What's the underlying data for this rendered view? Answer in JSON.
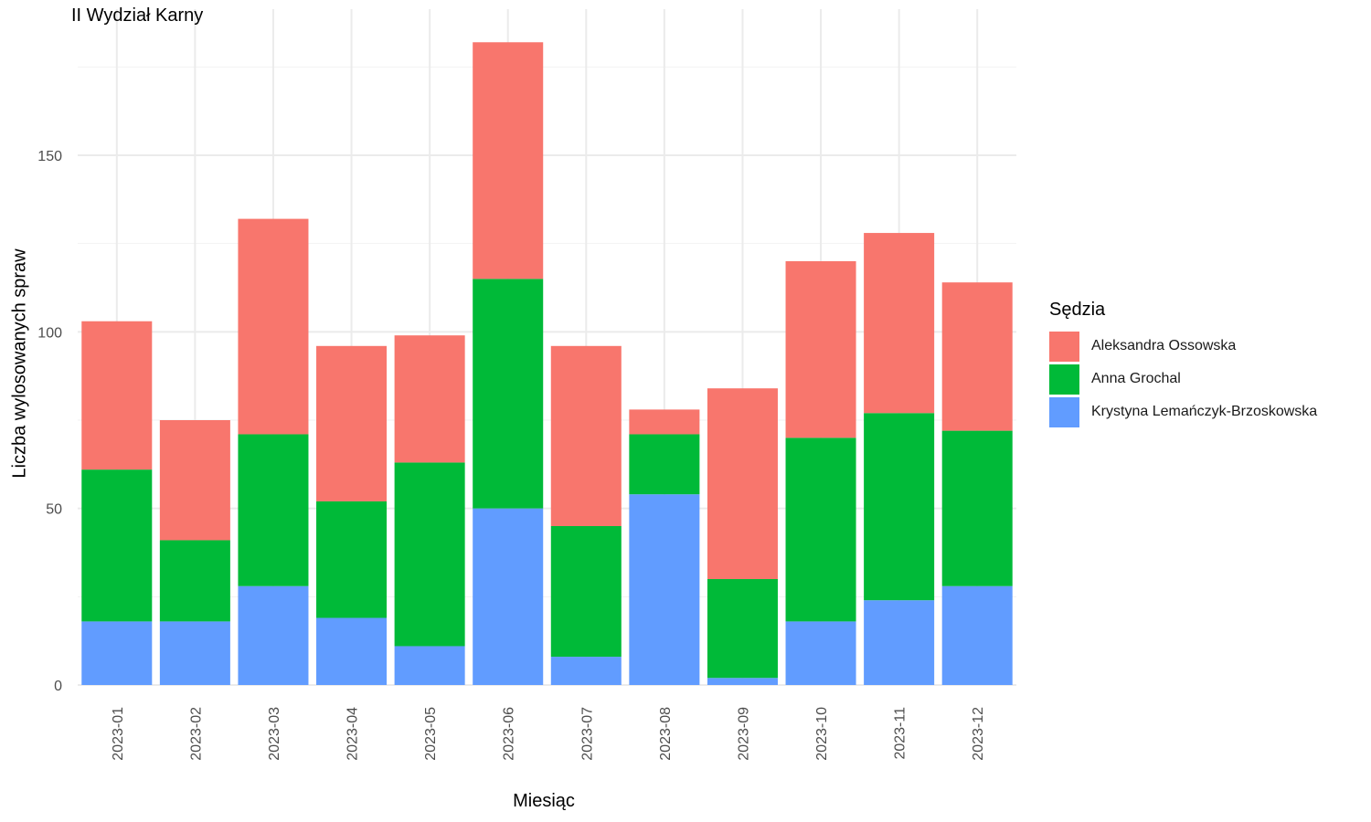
{
  "chart_data": {
    "type": "bar",
    "stacked": true,
    "title": "II Wydział Karny",
    "xlabel": "Miesiąc",
    "ylabel": "Liczba wylosowanych spraw",
    "ylim": [
      0,
      185
    ],
    "yticks": [
      0,
      50,
      100,
      150
    ],
    "grid": true,
    "legend_title": "Sędzia",
    "legend_position": "right",
    "categories": [
      "2023-01",
      "2023-02",
      "2023-03",
      "2023-04",
      "2023-05",
      "2023-06",
      "2023-07",
      "2023-08",
      "2023-09",
      "2023-10",
      "2023-11",
      "2023-12"
    ],
    "series": [
      {
        "name": "Krystyna Lemańczyk-Brzoskowska",
        "color": "#619CFF",
        "values": [
          18,
          18,
          28,
          19,
          11,
          50,
          8,
          54,
          2,
          18,
          24,
          28
        ]
      },
      {
        "name": "Anna Grochal",
        "color": "#00BA38",
        "values": [
          43,
          23,
          43,
          33,
          52,
          65,
          37,
          17,
          28,
          52,
          53,
          44
        ]
      },
      {
        "name": "Aleksandra Ossowska",
        "color": "#F8766D",
        "values": [
          42,
          34,
          61,
          44,
          36,
          67,
          51,
          7,
          54,
          50,
          51,
          42
        ]
      }
    ]
  }
}
